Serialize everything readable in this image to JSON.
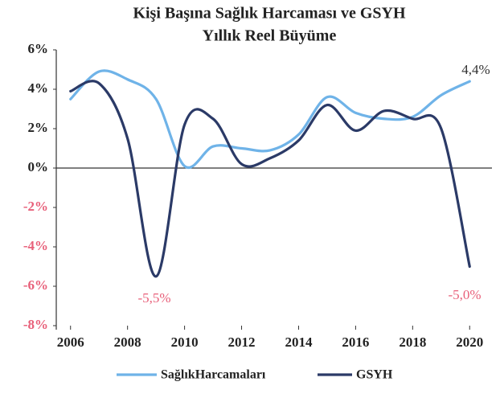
{
  "chart_data": {
    "type": "line",
    "title": [
      "Kişi Başına Sağlık Harcaması ve GSYH",
      "Yıllık Reel Büyüme"
    ],
    "x": [
      2006,
      2007,
      2008,
      2009,
      2010,
      2011,
      2012,
      2013,
      2014,
      2015,
      2016,
      2017,
      2018,
      2019,
      2020
    ],
    "series": [
      {
        "name": "SağlıkHarcamaları",
        "color": "#6fb3e8",
        "values": [
          3.5,
          4.9,
          4.5,
          3.5,
          0.1,
          1.1,
          1.0,
          0.9,
          1.7,
          3.6,
          2.8,
          2.5,
          2.6,
          3.7,
          4.4
        ]
      },
      {
        "name": "GSYH",
        "color": "#2b3a67",
        "values": [
          3.9,
          4.3,
          1.5,
          -5.5,
          2.2,
          2.5,
          0.2,
          0.5,
          1.4,
          3.2,
          1.9,
          2.9,
          2.5,
          2.0,
          -5.0
        ]
      }
    ],
    "xlim": [
      2005.5,
      2020.5
    ],
    "xticks": [
      2006,
      2008,
      2010,
      2012,
      2014,
      2016,
      2018,
      2020
    ],
    "ylim": [
      -8,
      6
    ],
    "yticks": [
      {
        "value": 6,
        "label": "6%"
      },
      {
        "value": 4,
        "label": "4%"
      },
      {
        "value": 2,
        "label": "2%"
      },
      {
        "value": 0,
        "label": "0%"
      },
      {
        "value": -2,
        "label": "-2%"
      },
      {
        "value": -4,
        "label": "-4%"
      },
      {
        "value": -6,
        "label": "-6%"
      },
      {
        "value": -8,
        "label": "-8%"
      }
    ],
    "tick_color": "#222222",
    "negative_tick_color": "#e8607a",
    "annotations": [
      "4,4%",
      "-5,5%",
      "-5,0%"
    ],
    "annotation_colors": [
      "#333333",
      "#e8607a",
      "#e8607a"
    ]
  }
}
